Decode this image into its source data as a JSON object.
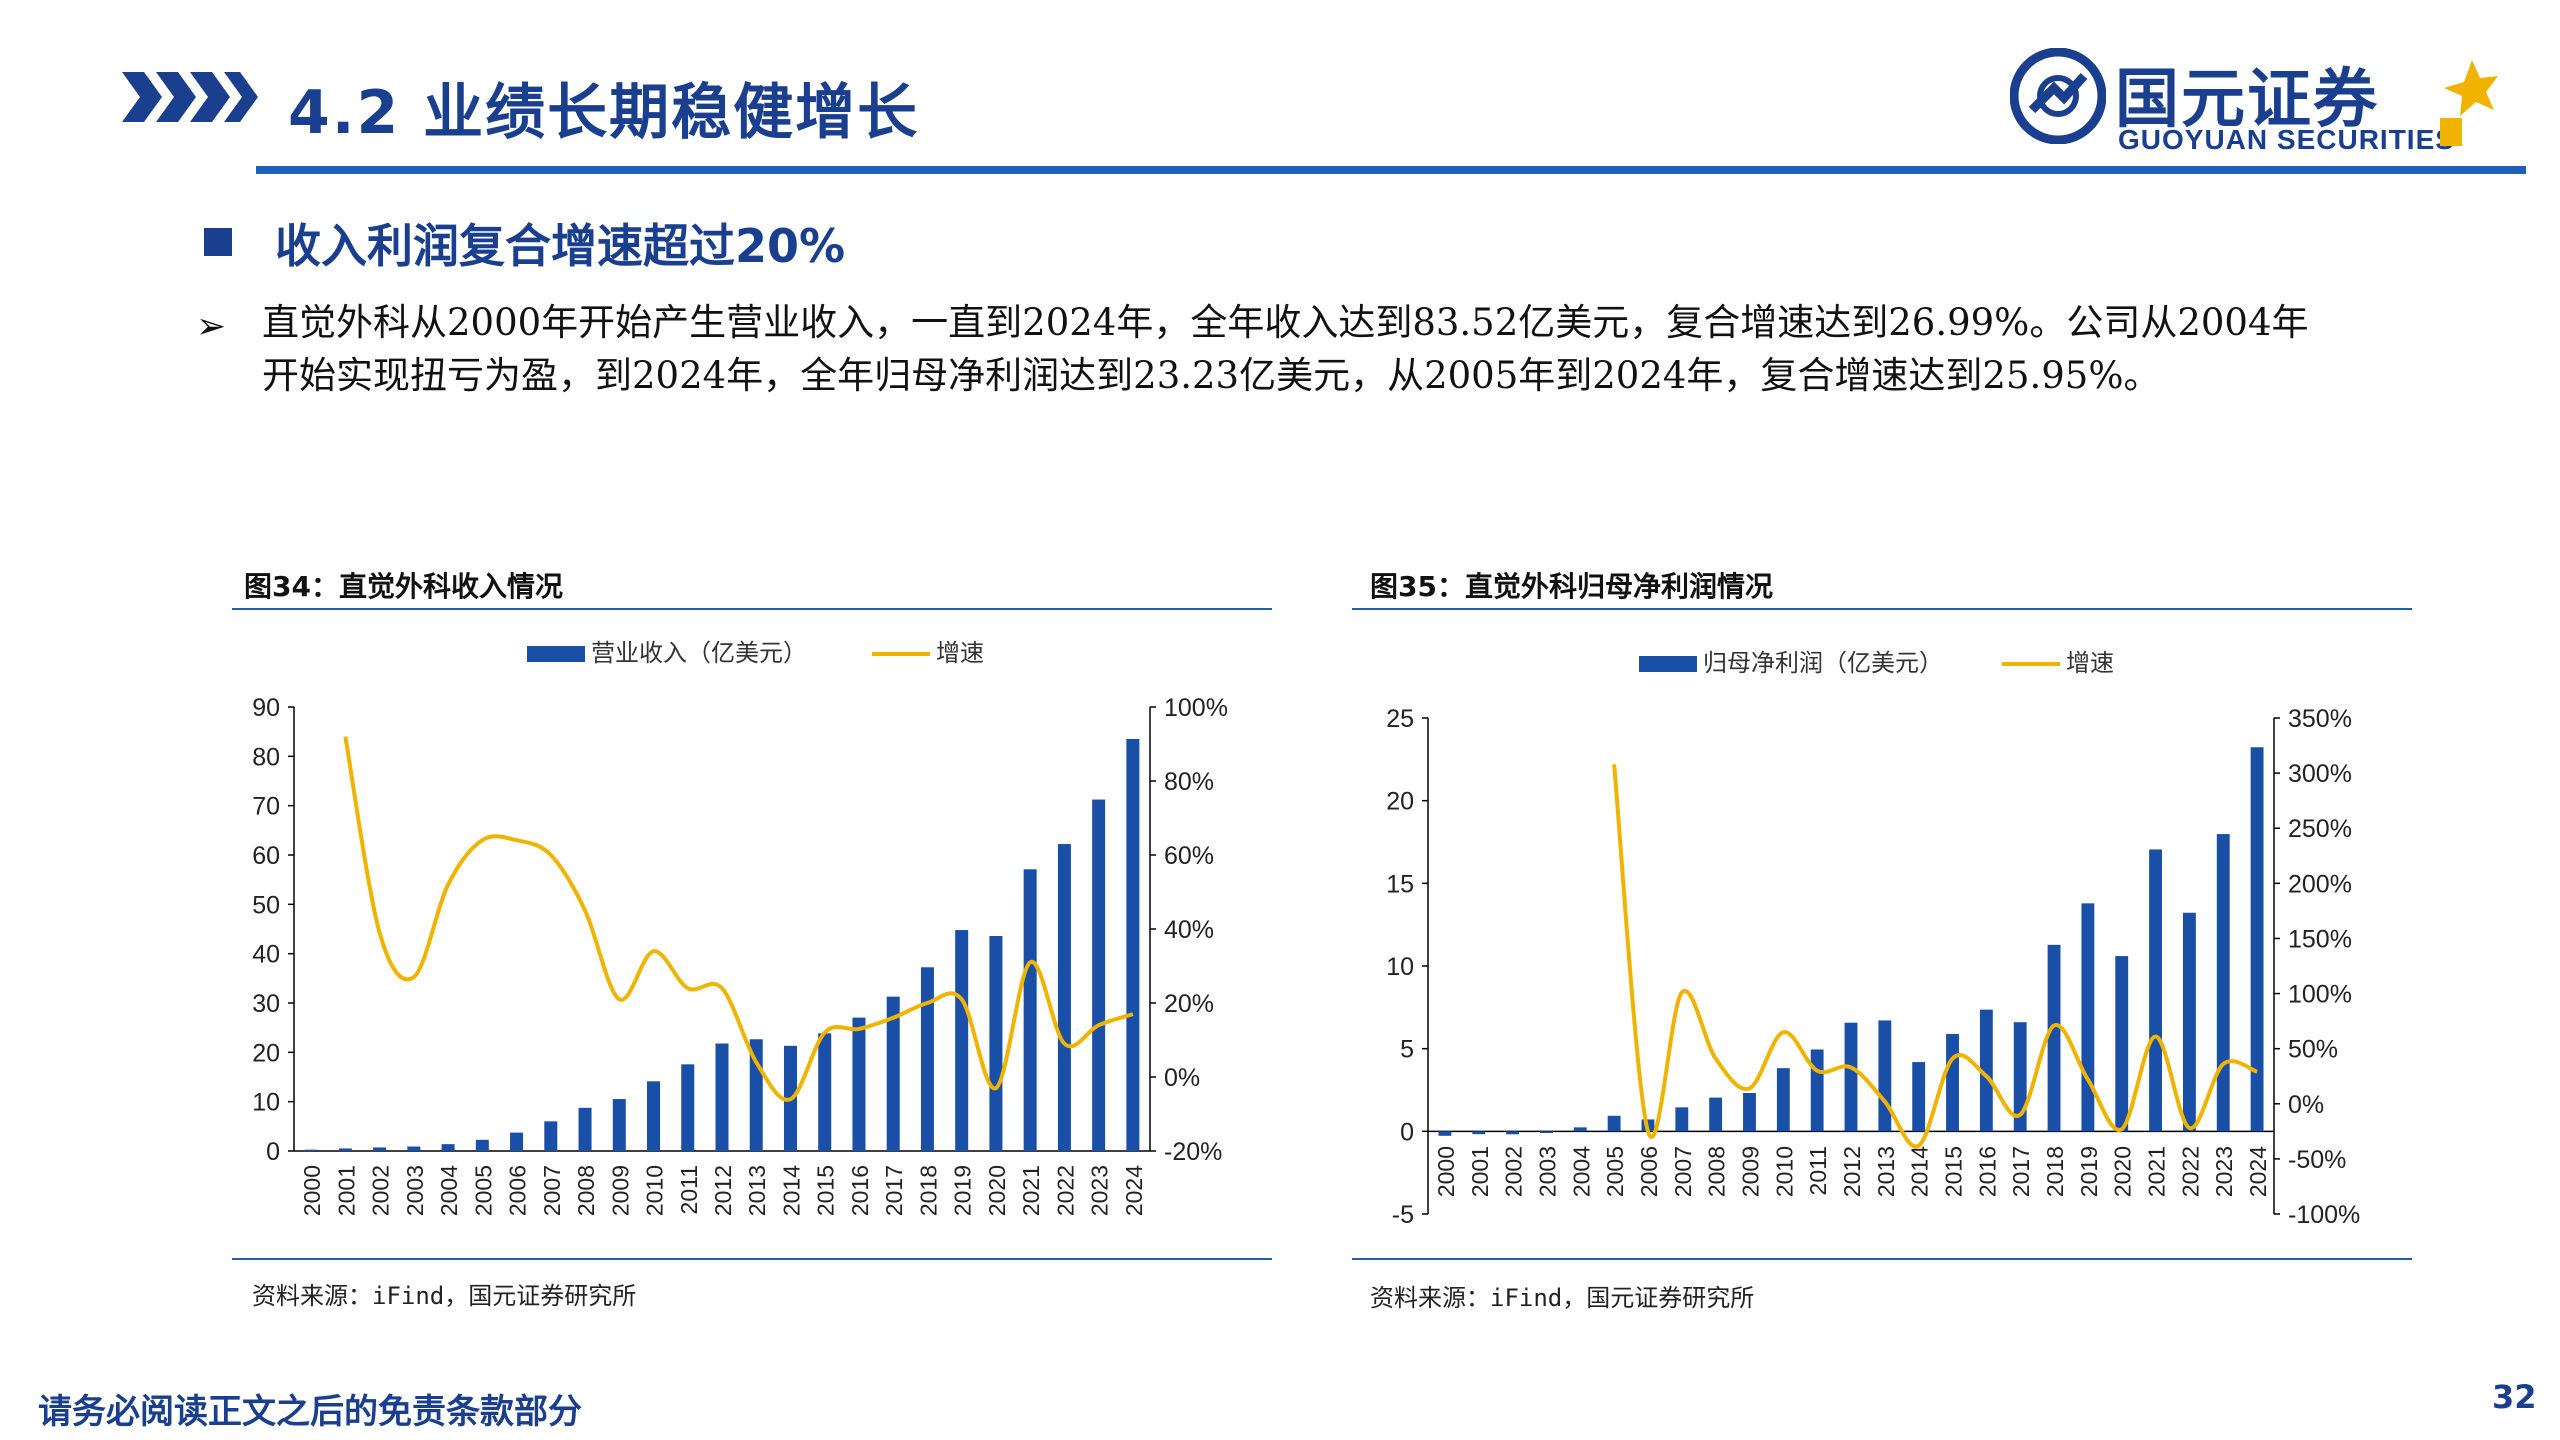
{
  "header": {
    "title": "4.2 业绩长期稳健增长",
    "logo_cn": "国元证券",
    "logo_en": "GUOYUAN SECURITIES"
  },
  "subheading": "收入利润复合增速超过20%",
  "paragraph": "直觉外科从2000年开始产生营业收入，一直到2024年，全年收入达到83.52亿美元，复合增速达到26.99%。公司从2004年开始实现扭亏为盈，到2024年，全年归母净利润达到23.23亿美元，从2005年到2024年，复合增速达到25.95%。",
  "colors": {
    "bar": "#1a4fa8",
    "line": "#f0b400",
    "brand": "#1a3f8f"
  },
  "figures": {
    "revenue": {
      "title": "图34：直觉外科收入情况",
      "source": "资料来源：iFind，国元证券研究所"
    },
    "profit": {
      "title": "图35：直觉外科归母净利润情况",
      "source": "资料来源：iFind，国元证券研究所"
    }
  },
  "footer": {
    "disclaimer": "请务必阅读正文之后的免责条款部分",
    "page": "32"
  },
  "chart_data": [
    {
      "type": "bar",
      "title": "图34：直觉外科收入情况",
      "categories": [
        "2000",
        "2001",
        "2002",
        "2003",
        "2004",
        "2005",
        "2006",
        "2007",
        "2008",
        "2009",
        "2010",
        "2011",
        "2012",
        "2013",
        "2014",
        "2015",
        "2016",
        "2017",
        "2018",
        "2019",
        "2020",
        "2021",
        "2022",
        "2023",
        "2024"
      ],
      "series": [
        {
          "name": "营业收入（亿美元）",
          "kind": "bar",
          "axis": "left",
          "values": [
            0.27,
            0.52,
            0.72,
            0.91,
            1.39,
            2.27,
            3.73,
            6.01,
            8.75,
            10.53,
            14.13,
            17.57,
            21.79,
            22.65,
            21.32,
            23.84,
            27.04,
            31.29,
            37.24,
            44.79,
            43.58,
            57.1,
            62.22,
            71.24,
            83.52
          ]
        },
        {
          "name": "增速",
          "kind": "line",
          "axis": "right",
          "values": [
            null,
            92,
            39,
            27,
            52,
            64,
            64,
            60,
            45,
            21,
            34,
            24,
            24,
            4,
            -6,
            12,
            13,
            16,
            20,
            21,
            -3,
            31,
            9,
            14,
            17
          ]
        }
      ],
      "ylim_left": [
        0,
        90
      ],
      "ytick_left": [
        "0",
        "10",
        "20",
        "30",
        "40",
        "50",
        "60",
        "70",
        "80",
        "90"
      ],
      "ylim_right": [
        -20,
        100
      ],
      "ytick_right": [
        "-20%",
        "0%",
        "20%",
        "40%",
        "60%",
        "80%",
        "100%"
      ]
    },
    {
      "type": "bar",
      "title": "图35：直觉外科归母净利润情况",
      "categories": [
        "2000",
        "2001",
        "2002",
        "2003",
        "2004",
        "2005",
        "2006",
        "2007",
        "2008",
        "2009",
        "2010",
        "2011",
        "2012",
        "2013",
        "2014",
        "2015",
        "2016",
        "2017",
        "2018",
        "2019",
        "2020",
        "2021",
        "2022",
        "2023",
        "2024"
      ],
      "series": [
        {
          "name": "归母净利润（亿美元）",
          "kind": "bar",
          "axis": "left",
          "values": [
            -0.27,
            -0.17,
            -0.18,
            -0.1,
            0.24,
            0.94,
            0.72,
            1.45,
            2.04,
            2.32,
            3.82,
            4.95,
            6.57,
            6.71,
            4.19,
            5.89,
            7.36,
            6.6,
            11.28,
            13.79,
            10.6,
            17.05,
            13.22,
            17.98,
            23.23
          ]
        },
        {
          "name": "增速",
          "kind": "line",
          "axis": "right",
          "values": [
            null,
            null,
            null,
            null,
            null,
            308,
            -25,
            101,
            41,
            14,
            65,
            30,
            33,
            2,
            -38,
            41,
            25,
            -10,
            71,
            22,
            -23,
            61,
            -22,
            36,
            29
          ]
        }
      ],
      "ylim_left": [
        -5,
        25
      ],
      "ytick_left": [
        "-5",
        "0",
        "5",
        "10",
        "15",
        "20",
        "25"
      ],
      "ylim_right": [
        -100,
        350
      ],
      "ytick_right": [
        "-100%",
        "-50%",
        "0%",
        "50%",
        "100%",
        "150%",
        "200%",
        "250%",
        "300%",
        "350%"
      ]
    }
  ]
}
